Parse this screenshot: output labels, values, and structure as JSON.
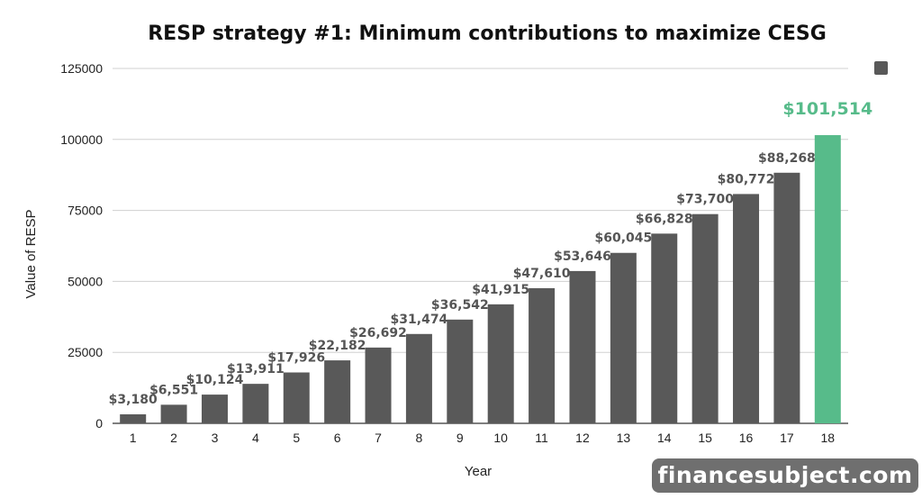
{
  "chart_data": {
    "type": "bar",
    "title": "RESP strategy #1: Minimum contributions to maximize CESG",
    "xlabel": "Year",
    "ylabel": "Value of RESP",
    "categories": [
      "1",
      "2",
      "3",
      "4",
      "5",
      "6",
      "7",
      "8",
      "9",
      "10",
      "11",
      "12",
      "13",
      "14",
      "15",
      "16",
      "17",
      "18"
    ],
    "values": [
      3180,
      6551,
      10124,
      13911,
      17926,
      22182,
      26692,
      31474,
      36542,
      41915,
      47610,
      53646,
      60045,
      66828,
      73700,
      80772,
      88268,
      101514
    ],
    "data_labels": [
      "$3,180",
      "$6,551",
      "$10,124",
      "$13,911",
      "$17,926",
      "$22,182",
      "$26,692",
      "$31,474",
      "$36,542",
      "$41,915",
      "$47,610",
      "$53,646",
      "$60,045",
      "$66,828",
      "$73,700",
      "$80,772",
      "$88,268",
      "$101,514"
    ],
    "ylim": [
      0,
      125000
    ],
    "yticks": [
      0,
      25000,
      50000,
      75000,
      100000,
      125000
    ],
    "ytick_labels": [
      "0",
      "25000",
      "50000",
      "75000",
      "100000",
      "125000"
    ],
    "grid": true,
    "legend_placement": "top-right",
    "colors": {
      "bar": "#595959",
      "highlight": "#57bb8a",
      "grid": "#d0d0d0"
    },
    "highlight_index": 17
  },
  "watermark": {
    "text": "financesubject.com"
  }
}
